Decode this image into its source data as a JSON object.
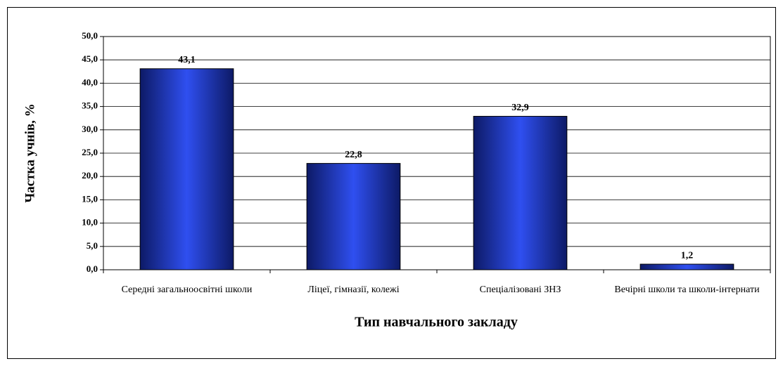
{
  "chart_data": {
    "type": "bar",
    "x_label": "Тип навчального закладу",
    "y_label": "Частка учнів, %",
    "categories": [
      "Середні загальноосвітні школи",
      "Ліцеї, гімназії, колежі",
      "Спеціалізовані ЗНЗ",
      "Вечірні школи та школи-інтернати"
    ],
    "values": [
      43.1,
      22.8,
      32.9,
      1.2
    ],
    "value_labels": [
      "43,1",
      "22,8",
      "32,9",
      "1,2"
    ],
    "color": "#2f4ff0",
    "ylim": [
      0,
      50
    ],
    "yticks": [
      {
        "value": 0,
        "label": "0,0"
      },
      {
        "value": 5,
        "label": "5,0"
      },
      {
        "value": 10,
        "label": "10,0"
      },
      {
        "value": 15,
        "label": "15,0"
      },
      {
        "value": 20,
        "label": "20,0"
      },
      {
        "value": 25,
        "label": "25,0"
      },
      {
        "value": 30,
        "label": "30,0"
      },
      {
        "value": 35,
        "label": "35,0"
      },
      {
        "value": 40,
        "label": "40,0"
      },
      {
        "value": 45,
        "label": "45,0"
      },
      {
        "value": 50,
        "label": "50,0"
      }
    ],
    "grid": true
  }
}
